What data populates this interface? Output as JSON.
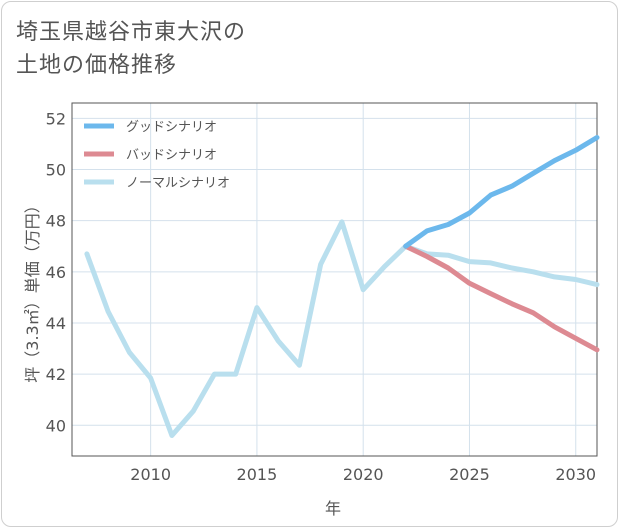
{
  "chart_data": {
    "type": "line",
    "title_lines": [
      "埼玉県越谷市東大沢の",
      "土地の価格推移"
    ],
    "xlabel": "年",
    "ylabel": "坪（3.3㎡）単価（万円）",
    "xlim": [
      2006.3,
      2031
    ],
    "ylim": [
      38.8,
      52.6
    ],
    "x_ticks": [
      2010,
      2015,
      2020,
      2025,
      2030
    ],
    "y_ticks": [
      40,
      42,
      44,
      46,
      48,
      50,
      52
    ],
    "grid": true,
    "legend_position": "top-left",
    "series": [
      {
        "name": "グッドシナリオ",
        "color": "#6cb8ec",
        "x": [
          2022,
          2023,
          2024,
          2025,
          2026,
          2027,
          2028,
          2029,
          2030,
          2031
        ],
        "values": [
          47.0,
          47.6,
          47.85,
          48.3,
          49.0,
          49.35,
          49.85,
          50.35,
          50.75,
          51.25
        ]
      },
      {
        "name": "バッドシナリオ",
        "color": "#dd8a92",
        "x": [
          2022,
          2023,
          2024,
          2025,
          2026,
          2027,
          2028,
          2029,
          2030,
          2031
        ],
        "values": [
          47.0,
          46.6,
          46.15,
          45.55,
          45.15,
          44.75,
          44.4,
          43.85,
          43.4,
          42.95
        ]
      },
      {
        "name": "ノーマルシナリオ",
        "color": "#b9dfee",
        "x": [
          2007,
          2008,
          2009,
          2010,
          2011,
          2012,
          2013,
          2014,
          2015,
          2016,
          2017,
          2018,
          2019,
          2020,
          2021,
          2022,
          2023,
          2024,
          2025,
          2026,
          2027,
          2028,
          2029,
          2030,
          2031
        ],
        "values": [
          46.7,
          44.45,
          42.85,
          41.85,
          39.6,
          40.55,
          42.0,
          42.0,
          44.6,
          43.3,
          42.35,
          46.3,
          47.95,
          45.3,
          46.2,
          47.0,
          46.7,
          46.65,
          46.4,
          46.35,
          46.15,
          46.0,
          45.8,
          45.7,
          45.5
        ]
      }
    ]
  }
}
